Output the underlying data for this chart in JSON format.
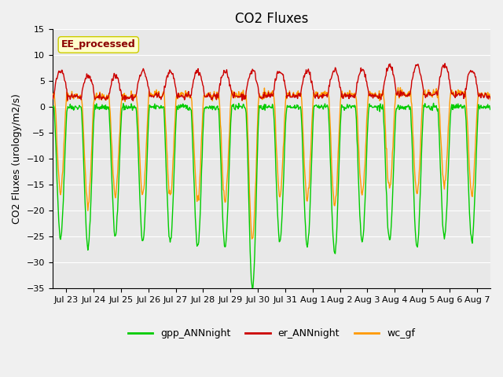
{
  "title": "CO2 Fluxes",
  "ylabel": "CO2 Fluxes (urology/m2/s)",
  "ylim": [
    -35,
    15
  ],
  "yticks": [
    -35,
    -30,
    -25,
    -20,
    -15,
    -10,
    -5,
    0,
    5,
    10,
    15
  ],
  "n_days": 16,
  "n_points_per_day": 48,
  "xtick_labels": [
    "Jul 23",
    "Jul 24",
    "Jul 25",
    "Jul 26",
    "Jul 27",
    "Jul 28",
    "Jul 29",
    "Jul 30",
    "Jul 31",
    "Aug 1",
    "Aug 2",
    "Aug 3",
    "Aug 4",
    "Aug 5",
    "Aug 6",
    "Aug 7"
  ],
  "legend_labels": [
    "gpp_ANNnight",
    "er_ANNnight",
    "wc_gf"
  ],
  "colors": {
    "gpp": "#00CC00",
    "er": "#CC0000",
    "wc": "#FF9900"
  },
  "annotation_text": "EE_processed",
  "annotation_color": "#8B0000",
  "annotation_bg": "#FFFFCC",
  "annotation_edge": "#CCCC00",
  "bg_inner": "#E8E8E8",
  "bg_outer": "#F0F0F0",
  "linewidth": 1.0,
  "title_fontsize": 12,
  "label_fontsize": 9,
  "tick_fontsize": 8
}
